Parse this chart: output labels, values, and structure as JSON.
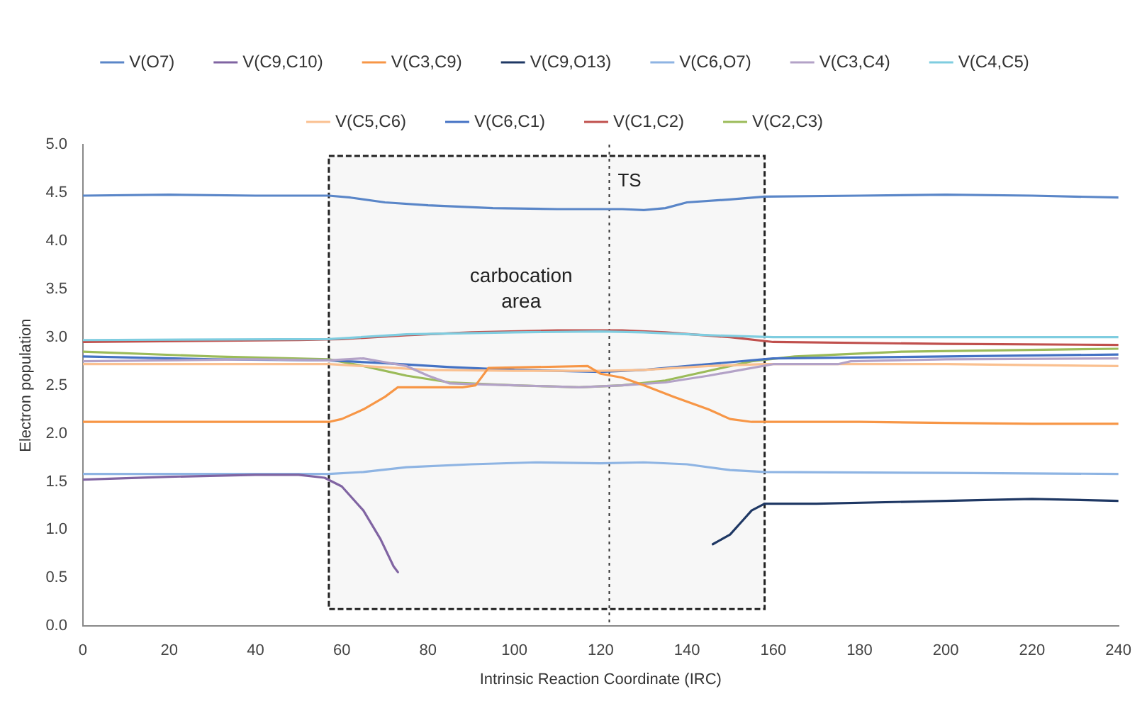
{
  "chart_data": {
    "type": "line",
    "xlabel": "Intrinsic Reaction Coordinate (IRC)",
    "ylabel": "Electron population",
    "legend": "top",
    "grid": false,
    "marker": "none",
    "line_style": "solid",
    "xlim": [
      0,
      240
    ],
    "xticks": [
      0,
      20,
      40,
      60,
      80,
      100,
      120,
      140,
      160,
      180,
      200,
      220,
      240
    ],
    "ylim": [
      0,
      5
    ],
    "yticks": [
      {
        "value": 0,
        "label": "0.0"
      },
      0.5,
      {
        "value": 1,
        "label": "1.0"
      },
      1.5,
      {
        "value": 2,
        "label": "2.0"
      },
      2.5,
      {
        "value": 3,
        "label": "3.0"
      },
      3.5,
      {
        "value": 4,
        "label": "4.0"
      },
      4.5,
      {
        "value": 5,
        "label": "5.0"
      }
    ],
    "bands": [
      {
        "axis": "x",
        "from": 57,
        "to": 158,
        "label": "carbocation area",
        "color": "#f7f7f7"
      }
    ],
    "ref_lines": [
      {
        "axis": "x",
        "value": 122,
        "label": "TS",
        "line_style": "dotted"
      }
    ],
    "series": [
      {
        "name": "V(O7)",
        "color": "#5a86c8",
        "x": [
          0,
          20,
          40,
          57,
          62,
          70,
          80,
          95,
          110,
          125,
          130,
          135,
          140,
          150,
          158,
          180,
          200,
          220,
          240
        ],
        "values": [
          4.47,
          4.48,
          4.47,
          4.47,
          4.45,
          4.4,
          4.37,
          4.34,
          4.33,
          4.33,
          4.32,
          4.34,
          4.4,
          4.43,
          4.46,
          4.47,
          4.48,
          4.47,
          4.45
        ]
      },
      {
        "name": "V(C9,C10)",
        "color": "#8064a2",
        "x": [
          0,
          20,
          40,
          50,
          56,
          60,
          65,
          69,
          72,
          73
        ],
        "values": [
          1.52,
          1.55,
          1.57,
          1.57,
          1.54,
          1.45,
          1.2,
          0.9,
          0.62,
          0.56
        ]
      },
      {
        "name": "V(C3,C9)",
        "color": "#f79646",
        "x": [
          0,
          20,
          40,
          57,
          60,
          65,
          70,
          73,
          88,
          91,
          94,
          117,
          120,
          125,
          130,
          137,
          145,
          150,
          155,
          158,
          180,
          200,
          220,
          240
        ],
        "values": [
          2.12,
          2.12,
          2.12,
          2.12,
          2.15,
          2.25,
          2.38,
          2.48,
          2.48,
          2.5,
          2.68,
          2.7,
          2.62,
          2.58,
          2.5,
          2.38,
          2.25,
          2.15,
          2.12,
          2.12,
          2.12,
          2.11,
          2.1,
          2.1
        ]
      },
      {
        "name": "V(C9,O13)",
        "color": "#1f3864",
        "x": [
          146,
          150,
          153,
          155,
          158,
          170,
          200,
          220,
          240
        ],
        "values": [
          0.85,
          0.95,
          1.1,
          1.2,
          1.27,
          1.27,
          1.3,
          1.32,
          1.3
        ]
      },
      {
        "name": "V(C6,O7)",
        "color": "#8eb4e3",
        "x": [
          0,
          20,
          40,
          57,
          65,
          75,
          90,
          105,
          120,
          130,
          140,
          150,
          158,
          200,
          240
        ],
        "values": [
          1.58,
          1.58,
          1.58,
          1.58,
          1.6,
          1.65,
          1.68,
          1.7,
          1.69,
          1.7,
          1.68,
          1.62,
          1.6,
          1.59,
          1.58
        ]
      },
      {
        "name": "V(C3,C4)",
        "color": "#b3a2c7",
        "x": [
          0,
          40,
          57,
          65,
          70,
          75,
          80,
          85,
          100,
          115,
          125,
          135,
          145,
          155,
          160,
          175,
          178,
          200,
          240
        ],
        "values": [
          2.75,
          2.77,
          2.76,
          2.78,
          2.74,
          2.7,
          2.6,
          2.52,
          2.5,
          2.48,
          2.5,
          2.53,
          2.6,
          2.68,
          2.72,
          2.72,
          2.75,
          2.77,
          2.78
        ]
      },
      {
        "name": "V(C4,C5)",
        "color": "#7fcde0",
        "x": [
          0,
          57,
          75,
          100,
          120,
          130,
          145,
          160,
          200,
          240
        ],
        "values": [
          2.97,
          2.98,
          3.03,
          3.05,
          3.06,
          3.05,
          3.02,
          3.0,
          3.0,
          3.0
        ]
      },
      {
        "name": "V(C5,C6)",
        "color": "#fac090",
        "x": [
          0,
          57,
          65,
          80,
          100,
          120,
          130,
          145,
          158,
          200,
          240
        ],
        "values": [
          2.72,
          2.72,
          2.7,
          2.66,
          2.65,
          2.65,
          2.66,
          2.7,
          2.72,
          2.72,
          2.7
        ]
      },
      {
        "name": "V(C6,C1)",
        "color": "#4472c4",
        "x": [
          0,
          30,
          57,
          70,
          85,
          100,
          120,
          130,
          140,
          150,
          160,
          200,
          240
        ],
        "values": [
          2.8,
          2.77,
          2.76,
          2.73,
          2.69,
          2.66,
          2.64,
          2.66,
          2.7,
          2.74,
          2.78,
          2.8,
          2.82
        ]
      },
      {
        "name": "V(C1,C2)",
        "color": "#c0504d",
        "x": [
          0,
          50,
          60,
          75,
          90,
          110,
          125,
          135,
          150,
          160,
          200,
          240
        ],
        "values": [
          2.95,
          2.97,
          2.98,
          3.02,
          3.05,
          3.07,
          3.07,
          3.05,
          3.0,
          2.95,
          2.93,
          2.92
        ]
      },
      {
        "name": "V(C2,C3)",
        "color": "#9bbb59",
        "x": [
          0,
          30,
          57,
          65,
          75,
          85,
          100,
          115,
          125,
          135,
          145,
          155,
          165,
          190,
          240
        ],
        "values": [
          2.85,
          2.8,
          2.77,
          2.7,
          2.6,
          2.53,
          2.5,
          2.48,
          2.5,
          2.55,
          2.65,
          2.75,
          2.8,
          2.85,
          2.88
        ]
      }
    ]
  }
}
